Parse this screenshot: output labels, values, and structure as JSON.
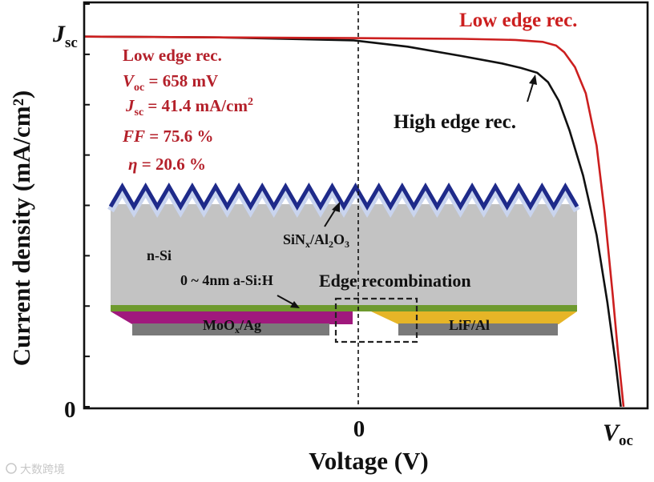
{
  "chart_data": {
    "type": "line",
    "title": "",
    "xlabel": "Voltage (V)",
    "ylabel": "Current density (mA/cm²)",
    "x_ticks": {
      "zero": "0",
      "voc_main": "V",
      "voc_sub": "oc"
    },
    "y_ticks": {
      "zero": "0",
      "jsc_main": "J",
      "jsc_sub": "sc"
    },
    "xlim": [
      -1.0,
      1.0
    ],
    "ylim": [
      0,
      1.0
    ],
    "series": [
      {
        "name": "Low edge rec.",
        "color": "#cc1f1f",
        "x": [
          -1.0,
          -0.5,
          0.0,
          0.4,
          0.6,
          0.7,
          0.75,
          0.78,
          0.82,
          0.86,
          0.9,
          0.93,
          0.96,
          0.98,
          1.0
        ],
        "y": [
          0.992,
          0.99,
          0.988,
          0.986,
          0.983,
          0.978,
          0.968,
          0.95,
          0.91,
          0.84,
          0.7,
          0.52,
          0.3,
          0.14,
          0.0
        ]
      },
      {
        "name": "High edge rec.",
        "color": "#111111",
        "x": [
          -1.0,
          -0.5,
          0.0,
          0.2,
          0.4,
          0.55,
          0.62,
          0.68,
          0.72,
          0.76,
          0.8,
          0.85,
          0.9,
          0.94,
          0.97,
          0.99
        ],
        "y": [
          0.992,
          0.99,
          0.982,
          0.965,
          0.94,
          0.92,
          0.908,
          0.895,
          0.87,
          0.82,
          0.74,
          0.62,
          0.46,
          0.28,
          0.12,
          0.0
        ]
      }
    ],
    "legend": {
      "low": "Low edge rec.",
      "high": "High edge rec."
    },
    "annotation": {
      "title": "Low edge rec.",
      "voc_var": "V",
      "voc_sub": "oc",
      "voc_val": " = 658 mV",
      "jsc_var": "J",
      "jsc_sub": "sc",
      "jsc_val": " = 41.4 mA/cm",
      "jsc_sup": "2",
      "ff_var": "FF",
      "ff_val": " = 75.6 %",
      "eta_var": "η",
      "eta_val": " = 20.6 %"
    },
    "inset": {
      "nsi": "n-Si",
      "coating_main": "SiN",
      "coating_sub1": "x",
      "coating_mid": "/Al",
      "coating_sub2": "2",
      "coating_o": "O",
      "coating_sub3": "3",
      "asi": "0 ~ 4nm a-Si:H",
      "edge": "Edge recombination",
      "left_contact_main": "MoO",
      "left_contact_sub": "x",
      "left_contact_rest": "/Ag",
      "right_contact": "LiF/Al",
      "colors": {
        "coating_outer": "#1e2a8a",
        "coating_inner": "#c9d4ee",
        "silicon": "#c3c3c3",
        "asi": "#6e9a2e",
        "moox": "#a0197d",
        "lif": "#e6b527",
        "metal": "#7a7a7a"
      }
    },
    "grid": false
  },
  "watermark": "大数跨境"
}
